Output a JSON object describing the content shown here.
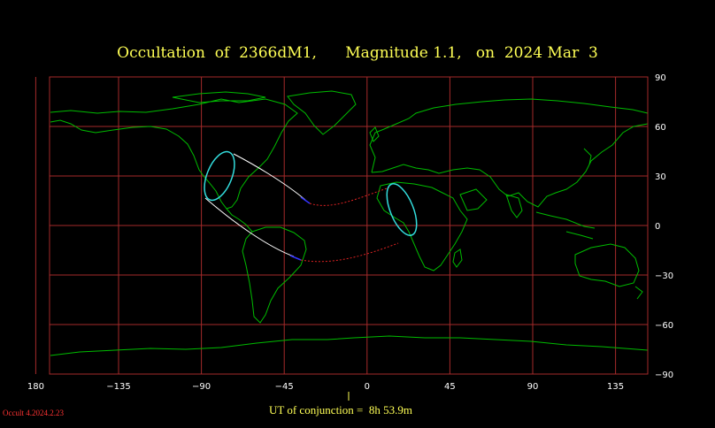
{
  "title": "Occultation  of  2366dM1,      Magnitude 1.1,   on  2024 Mar  3",
  "ut_label": "UT of conjunction =  8h 53.9m",
  "version": "Occult 4.2024.2.23",
  "map": {
    "projection": "plate-carree",
    "central_longitude": -10,
    "lon_range": [
      162,
      163
    ],
    "lat_range": [
      -90,
      90
    ],
    "lon_ticks": [
      180,
      -135,
      -90,
      -45,
      0,
      45,
      90,
      135
    ],
    "lat_ticks": [
      90,
      60,
      30,
      0,
      -30,
      -60,
      -90
    ],
    "lon_tick_labels": [
      "180",
      "−135",
      "−90",
      "−45",
      "0",
      "45",
      "90",
      "135"
    ],
    "lat_tick_labels": [
      "90",
      "60",
      "30",
      "0",
      "−30",
      "−60",
      "−90"
    ],
    "colors": {
      "background": "#000000",
      "grid": "#a52a2a",
      "coast": "#00bb00",
      "path_day": "#ffffff",
      "path_night": "#dd2222",
      "path_twilight": "#3333ff",
      "ellipse": "#33dddd",
      "title": "#ffff55",
      "version": "#ff3333"
    }
  }
}
